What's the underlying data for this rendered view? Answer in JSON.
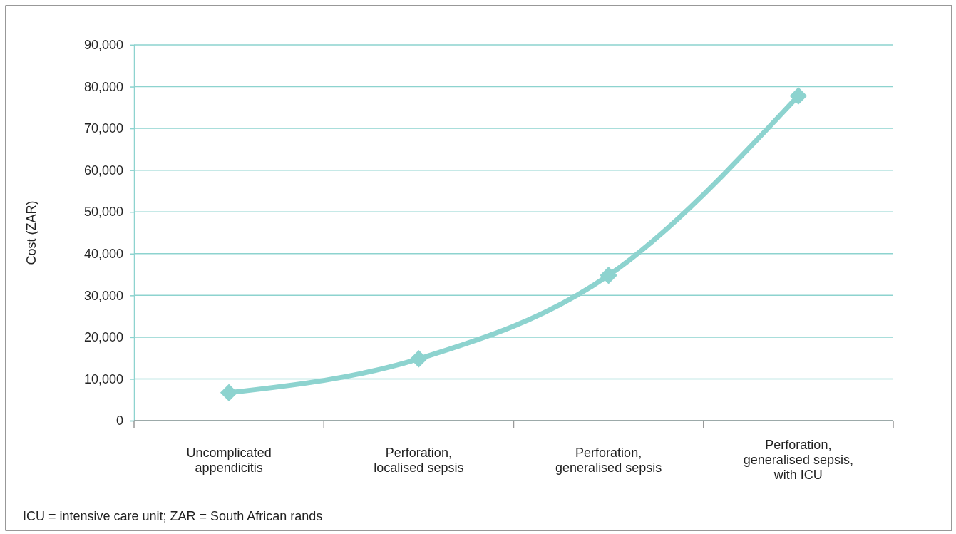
{
  "chart_data": {
    "type": "line",
    "ylabel": "Cost (ZAR)",
    "categories": [
      "Uncomplicated appendicitis",
      "Perforation, localised sepsis",
      "Perforation, generalised sepsis",
      "Perforation, generalised sepsis, with ICU"
    ],
    "series": [
      {
        "color": "#8dd3cf",
        "values": [
          6700,
          14800,
          34800,
          77800
        ]
      }
    ],
    "ylim": [
      0,
      90000
    ],
    "yticks": [
      {
        "value": 0,
        "label": "0"
      },
      {
        "value": 10000,
        "label": "10,000"
      },
      {
        "value": 20000,
        "label": "20,000"
      },
      {
        "value": 30000,
        "label": "30,000"
      },
      {
        "value": 40000,
        "label": "40,000"
      },
      {
        "value": 50000,
        "label": "50,000"
      },
      {
        "value": 60000,
        "label": "60,000"
      },
      {
        "value": 70000,
        "label": "70,000"
      },
      {
        "value": 80000,
        "label": "80,000"
      },
      {
        "value": 90000,
        "label": "90,000"
      }
    ],
    "grid": "y",
    "marker": "diamond",
    "line_style": "solid",
    "annotations": [
      "ICU = intensive care unit; ZAR = South African rands"
    ]
  }
}
